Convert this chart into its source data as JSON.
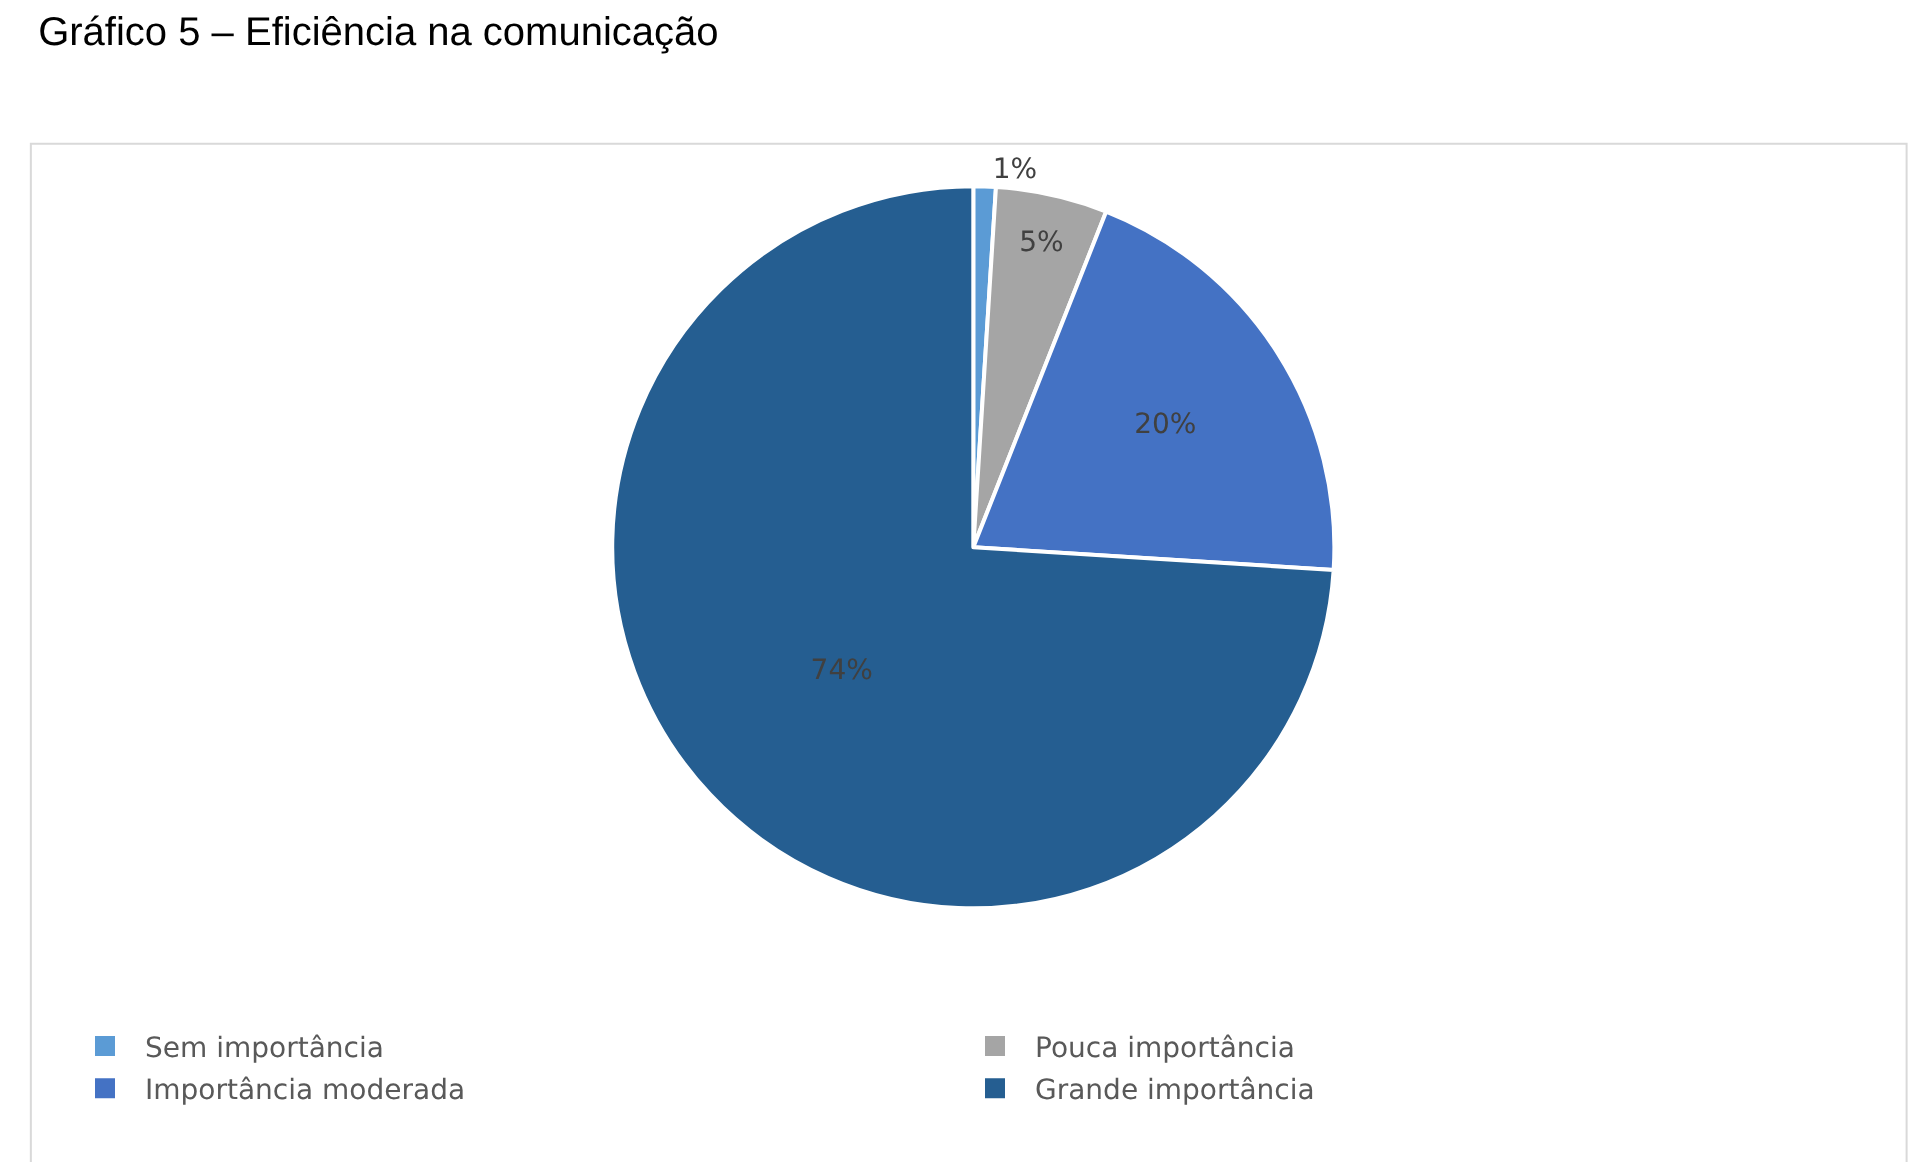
{
  "chart_data": {
    "type": "pie",
    "title": "Gráfico 5 – Eficiência na comunicação",
    "categories": [
      "Sem importância",
      "Pouca importância",
      "Importância moderada",
      "Grande importância"
    ],
    "values": [
      1,
      5,
      20,
      74
    ],
    "colors": [
      "#5b9bd5",
      "#a5a5a5",
      "#4472c4",
      "#255e91"
    ],
    "value_labels": [
      "1%",
      "5%",
      "20%",
      "74%"
    ],
    "legend": "bottom"
  }
}
